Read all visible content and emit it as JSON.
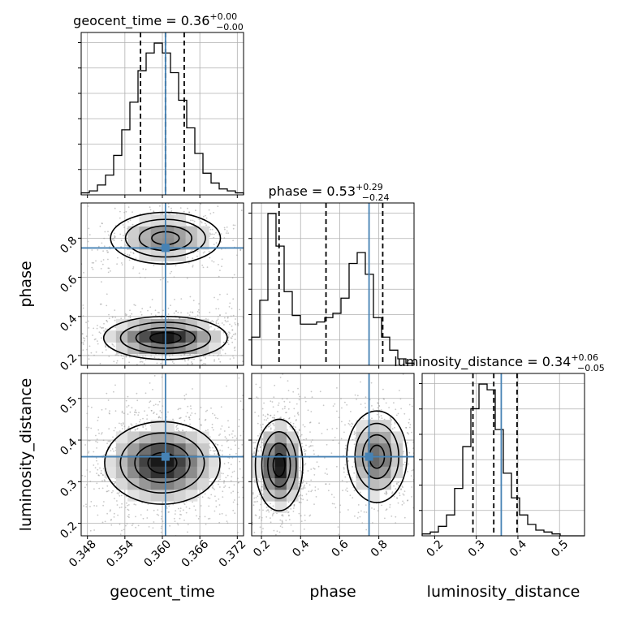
{
  "chart_data": {
    "type": "corner",
    "parameters": [
      {
        "name": "geocent_time",
        "label": "geocent_time",
        "median": 0.36,
        "plus": 0.0,
        "minus": 0.0,
        "title_value": "0.36",
        "title_plus": "+0.00",
        "title_minus": "−0.00",
        "range": [
          0.347,
          0.373
        ],
        "ticks": [
          0.348,
          0.354,
          0.36,
          0.366,
          0.372
        ],
        "tick_labels": [
          "0.348",
          "0.354",
          "0.360",
          "0.366",
          "0.372"
        ],
        "injection": 0.3605,
        "quantiles": [
          0.3565,
          0.3605,
          0.3635
        ],
        "histogram": {
          "edges_start": 0.347,
          "bin_width": 0.0013,
          "counts": [
            1,
            2,
            5,
            10,
            20,
            33,
            47,
            63,
            72,
            77,
            72,
            62,
            48,
            34,
            21,
            11,
            6,
            3,
            2,
            1
          ]
        }
      },
      {
        "name": "phase",
        "label": "phase",
        "median": 0.53,
        "plus": 0.29,
        "minus": 0.24,
        "title_value": "0.53",
        "title_plus": "+0.29",
        "title_minus": "−0.24",
        "range": [
          0.15,
          0.98
        ],
        "ticks": [
          0.2,
          0.4,
          0.6,
          0.8
        ],
        "tick_labels": [
          "0.2",
          "0.4",
          "0.6",
          "0.8"
        ],
        "injection": 0.75,
        "quantiles": [
          0.29,
          0.53,
          0.82
        ],
        "histogram": {
          "edges_start": 0.15,
          "bin_width": 0.0415,
          "counts": [
            13,
            30,
            70,
            55,
            34,
            23,
            19,
            19,
            20,
            22,
            24,
            31,
            47,
            52,
            42,
            22,
            13,
            7,
            3,
            1
          ]
        }
      },
      {
        "name": "luminosity_distance",
        "label": "luminosity_distance",
        "median": 0.34,
        "plus": 0.06,
        "minus": 0.05,
        "title_value": "0.34",
        "title_plus": "+0.06",
        "title_minus": "−0.05",
        "range": [
          0.17,
          0.56
        ],
        "ticks": [
          0.2,
          0.3,
          0.4,
          0.5
        ],
        "tick_labels": [
          "0.2",
          "0.3",
          "0.4",
          "0.5"
        ],
        "injection": 0.36,
        "quantiles": [
          0.292,
          0.342,
          0.398
        ],
        "histogram": {
          "edges_start": 0.17,
          "bin_width": 0.0195,
          "counts": [
            1,
            2,
            5,
            11,
            25,
            47,
            67,
            80,
            77,
            56,
            33,
            20,
            11,
            6,
            3,
            2,
            1,
            0,
            0,
            0
          ]
        }
      }
    ],
    "grid": true,
    "injection_color": "#4682b4",
    "quantile_style": "dashed",
    "contours": "density levels with grey 2D histogram and scatter points"
  }
}
